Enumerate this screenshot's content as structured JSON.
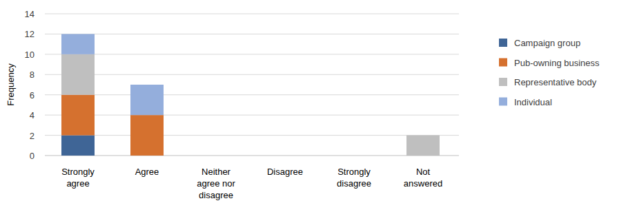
{
  "chart_data": {
    "type": "bar",
    "stacked": true,
    "grid": true,
    "legend": "right",
    "y_label": "Frequency",
    "categories": [
      "Strongly agree",
      "Agree",
      "Neither agree nor disagree",
      "Disagree",
      "Strongly disagree",
      "Not answered"
    ],
    "series": [
      {
        "name": "Campaign group",
        "color": "#3f6596",
        "values": [
          2,
          0,
          0,
          0,
          0,
          0
        ]
      },
      {
        "name": "Pub-owning business",
        "color": "#d5712f",
        "values": [
          4,
          4,
          0,
          0,
          0,
          0
        ]
      },
      {
        "name": "Representative body",
        "color": "#bfbfbf",
        "values": [
          4,
          0,
          0,
          0,
          0,
          2
        ]
      },
      {
        "name": "Individual",
        "color": "#94aedc",
        "values": [
          2,
          3,
          0,
          0,
          0,
          0
        ]
      }
    ],
    "ylim": [
      0,
      14
    ],
    "yticks": [
      0,
      2,
      4,
      6,
      8,
      10,
      12,
      14
    ]
  }
}
